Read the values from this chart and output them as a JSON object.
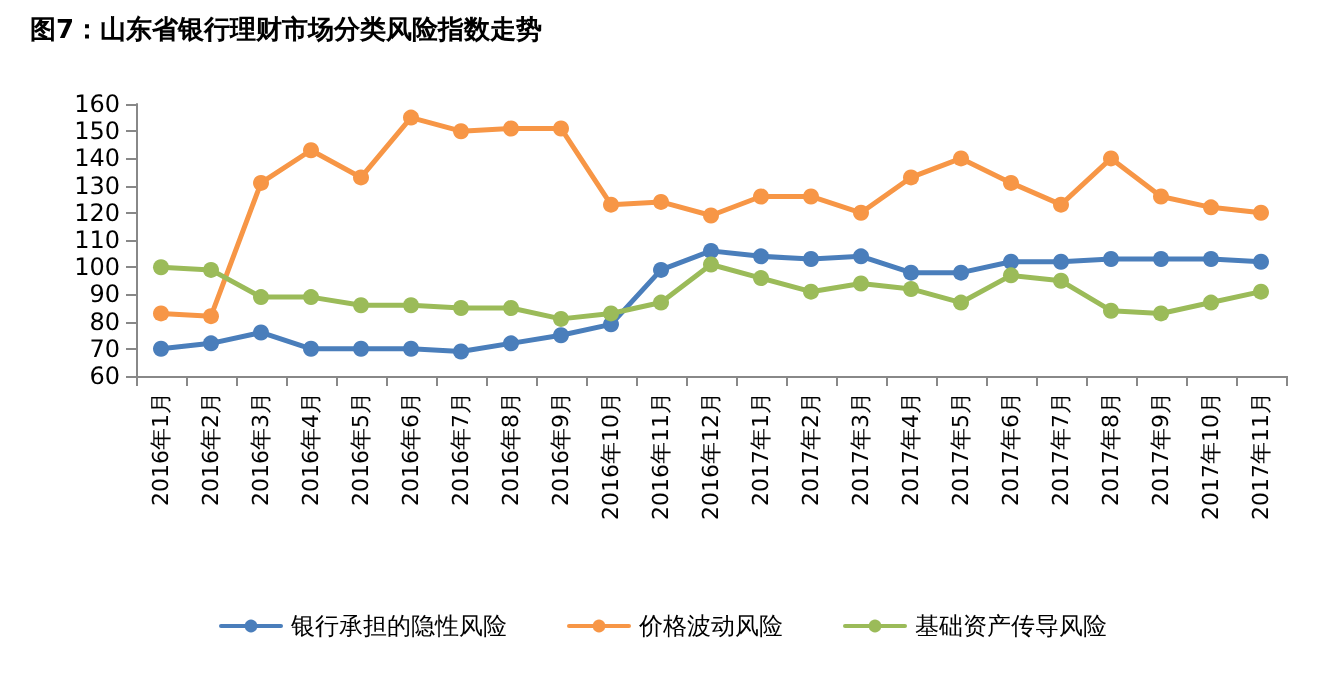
{
  "chart_data": {
    "type": "line",
    "title": "图7：山东省银行理财市场分类风险指数走势",
    "categories": [
      "2016年1月",
      "2016年2月",
      "2016年3月",
      "2016年4月",
      "2016年5月",
      "2016年6月",
      "2016年7月",
      "2016年8月",
      "2016年9月",
      "2016年10月",
      "2016年11月",
      "2016年12月",
      "2017年1月",
      "2017年2月",
      "2017年3月",
      "2017年4月",
      "2017年5月",
      "2017年6月",
      "2017年7月",
      "2017年8月",
      "2017年9月",
      "2017年10月",
      "2017年11月"
    ],
    "series": [
      {
        "name": "银行承担的隐性风险",
        "color": "#4a7ebb",
        "values": [
          70,
          72,
          76,
          70,
          70,
          70,
          69,
          72,
          75,
          79,
          99,
          106,
          104,
          103,
          104,
          98,
          98,
          102,
          102,
          103,
          103,
          103,
          102
        ]
      },
      {
        "name": "价格波动风险",
        "color": "#f79646",
        "values": [
          83,
          82,
          131,
          143,
          133,
          155,
          150,
          151,
          151,
          123,
          124,
          119,
          126,
          126,
          120,
          133,
          140,
          131,
          123,
          140,
          126,
          122,
          120
        ]
      },
      {
        "name": "基础资产传导风险",
        "color": "#9bbb59",
        "values": [
          100,
          99,
          89,
          89,
          86,
          86,
          85,
          85,
          81,
          83,
          87,
          101,
          96,
          91,
          94,
          92,
          87,
          97,
          95,
          84,
          83,
          87,
          91
        ]
      }
    ],
    "ylim": [
      60,
      160
    ],
    "yticks": [
      60,
      70,
      80,
      90,
      100,
      110,
      120,
      130,
      140,
      150,
      160
    ],
    "grid": false,
    "legend": "bottom",
    "marker": "circle",
    "line_style": "solid"
  }
}
